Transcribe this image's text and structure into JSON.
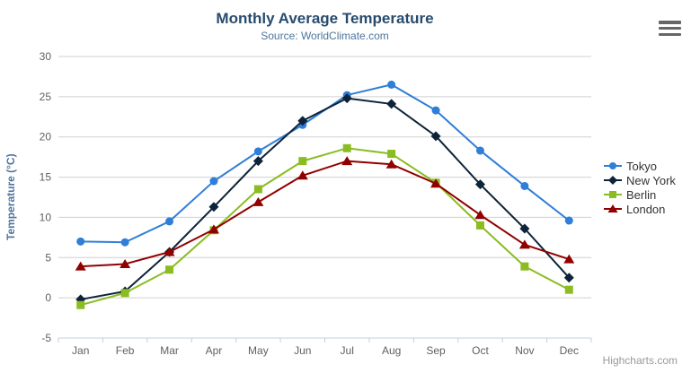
{
  "chart_data": {
    "type": "line",
    "title": "Monthly Average Temperature",
    "subtitle": "Source: WorldClimate.com",
    "xlabel": "",
    "ylabel": "Temperature (°C)",
    "ylim": [
      -5,
      30
    ],
    "yticks": [
      -5,
      0,
      5,
      10,
      15,
      20,
      25,
      30
    ],
    "grid": true,
    "legend_position": "right",
    "credits": "Highcharts.com",
    "categories": [
      "Jan",
      "Feb",
      "Mar",
      "Apr",
      "May",
      "Jun",
      "Jul",
      "Aug",
      "Sep",
      "Oct",
      "Nov",
      "Dec"
    ],
    "series": [
      {
        "name": "Tokyo",
        "color": "#2f7ed8",
        "marker": "circle",
        "values": [
          7.0,
          6.9,
          9.5,
          14.5,
          18.2,
          21.5,
          25.2,
          26.5,
          23.3,
          18.3,
          13.9,
          9.6
        ]
      },
      {
        "name": "New York",
        "color": "#0d233a",
        "marker": "diamond",
        "values": [
          -0.2,
          0.8,
          5.7,
          11.3,
          17.0,
          22.0,
          24.8,
          24.1,
          20.1,
          14.1,
          8.6,
          2.5
        ]
      },
      {
        "name": "Berlin",
        "color": "#8bbc21",
        "marker": "square",
        "values": [
          -0.9,
          0.6,
          3.5,
          8.4,
          13.5,
          17.0,
          18.6,
          17.9,
          14.3,
          9.0,
          3.9,
          1.0
        ]
      },
      {
        "name": "London",
        "color": "#910000",
        "marker": "triangle",
        "values": [
          3.9,
          4.2,
          5.7,
          8.5,
          11.9,
          15.2,
          17.0,
          16.6,
          14.2,
          10.3,
          6.6,
          4.8
        ]
      }
    ],
    "colors": {
      "title": "#274b6d",
      "subtitle": "#4d759e",
      "axis_title": "#4d759e",
      "tick_label": "#606060",
      "gridline": "#d0d0d0",
      "axis_line": "#c0d0e0",
      "legend_text": "#333333",
      "credits_text": "#999999"
    }
  },
  "export_menu": {
    "icon": "hamburger-menu-icon",
    "tooltip": "Chart context menu"
  }
}
